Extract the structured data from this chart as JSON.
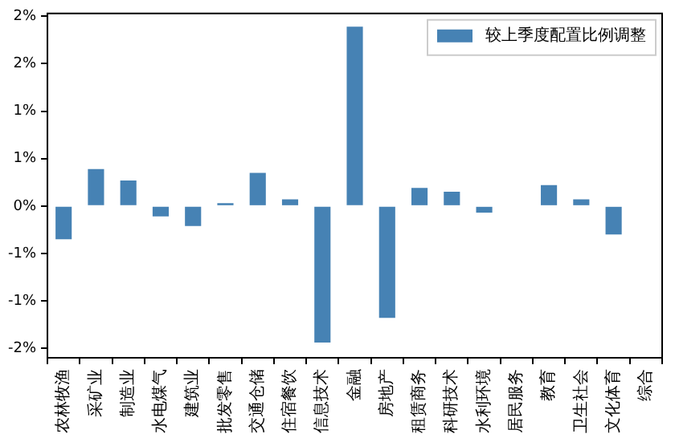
{
  "chart_data": {
    "type": "bar",
    "categories": [
      "农林牧渔",
      "采矿业",
      "制造业",
      "水电煤气",
      "建筑业",
      "批发零售",
      "交通仓储",
      "住宿餐饮",
      "信息技术",
      "金融",
      "房地产",
      "租赁商务",
      "科研技术",
      "水利环境",
      "居民服务",
      "教育",
      "卫生社会",
      "文化体育",
      "综合"
    ],
    "series": [
      {
        "name": "较上季度配置比例调整",
        "color": "#4682b4",
        "values": [
          -0.35,
          0.39,
          0.27,
          -0.11,
          -0.21,
          0.03,
          0.35,
          0.07,
          -1.44,
          1.89,
          -1.18,
          0.19,
          0.15,
          -0.07,
          0,
          0.22,
          0.07,
          -0.3,
          0
        ]
      }
    ],
    "ylim": [
      -1.6,
      2.03
    ],
    "yticks": [
      {
        "value": -1.5,
        "label": "-2%"
      },
      {
        "value": -1,
        "label": "-1%"
      },
      {
        "value": -0.5,
        "label": "-1%"
      },
      {
        "value": 0,
        "label": "0%"
      },
      {
        "value": 0.5,
        "label": "1%"
      },
      {
        "value": 1,
        "label": "1%"
      },
      {
        "value": 1.5,
        "label": "2%"
      },
      {
        "value": 2,
        "label": "2%"
      }
    ],
    "grid": false,
    "legend": "top right"
  }
}
